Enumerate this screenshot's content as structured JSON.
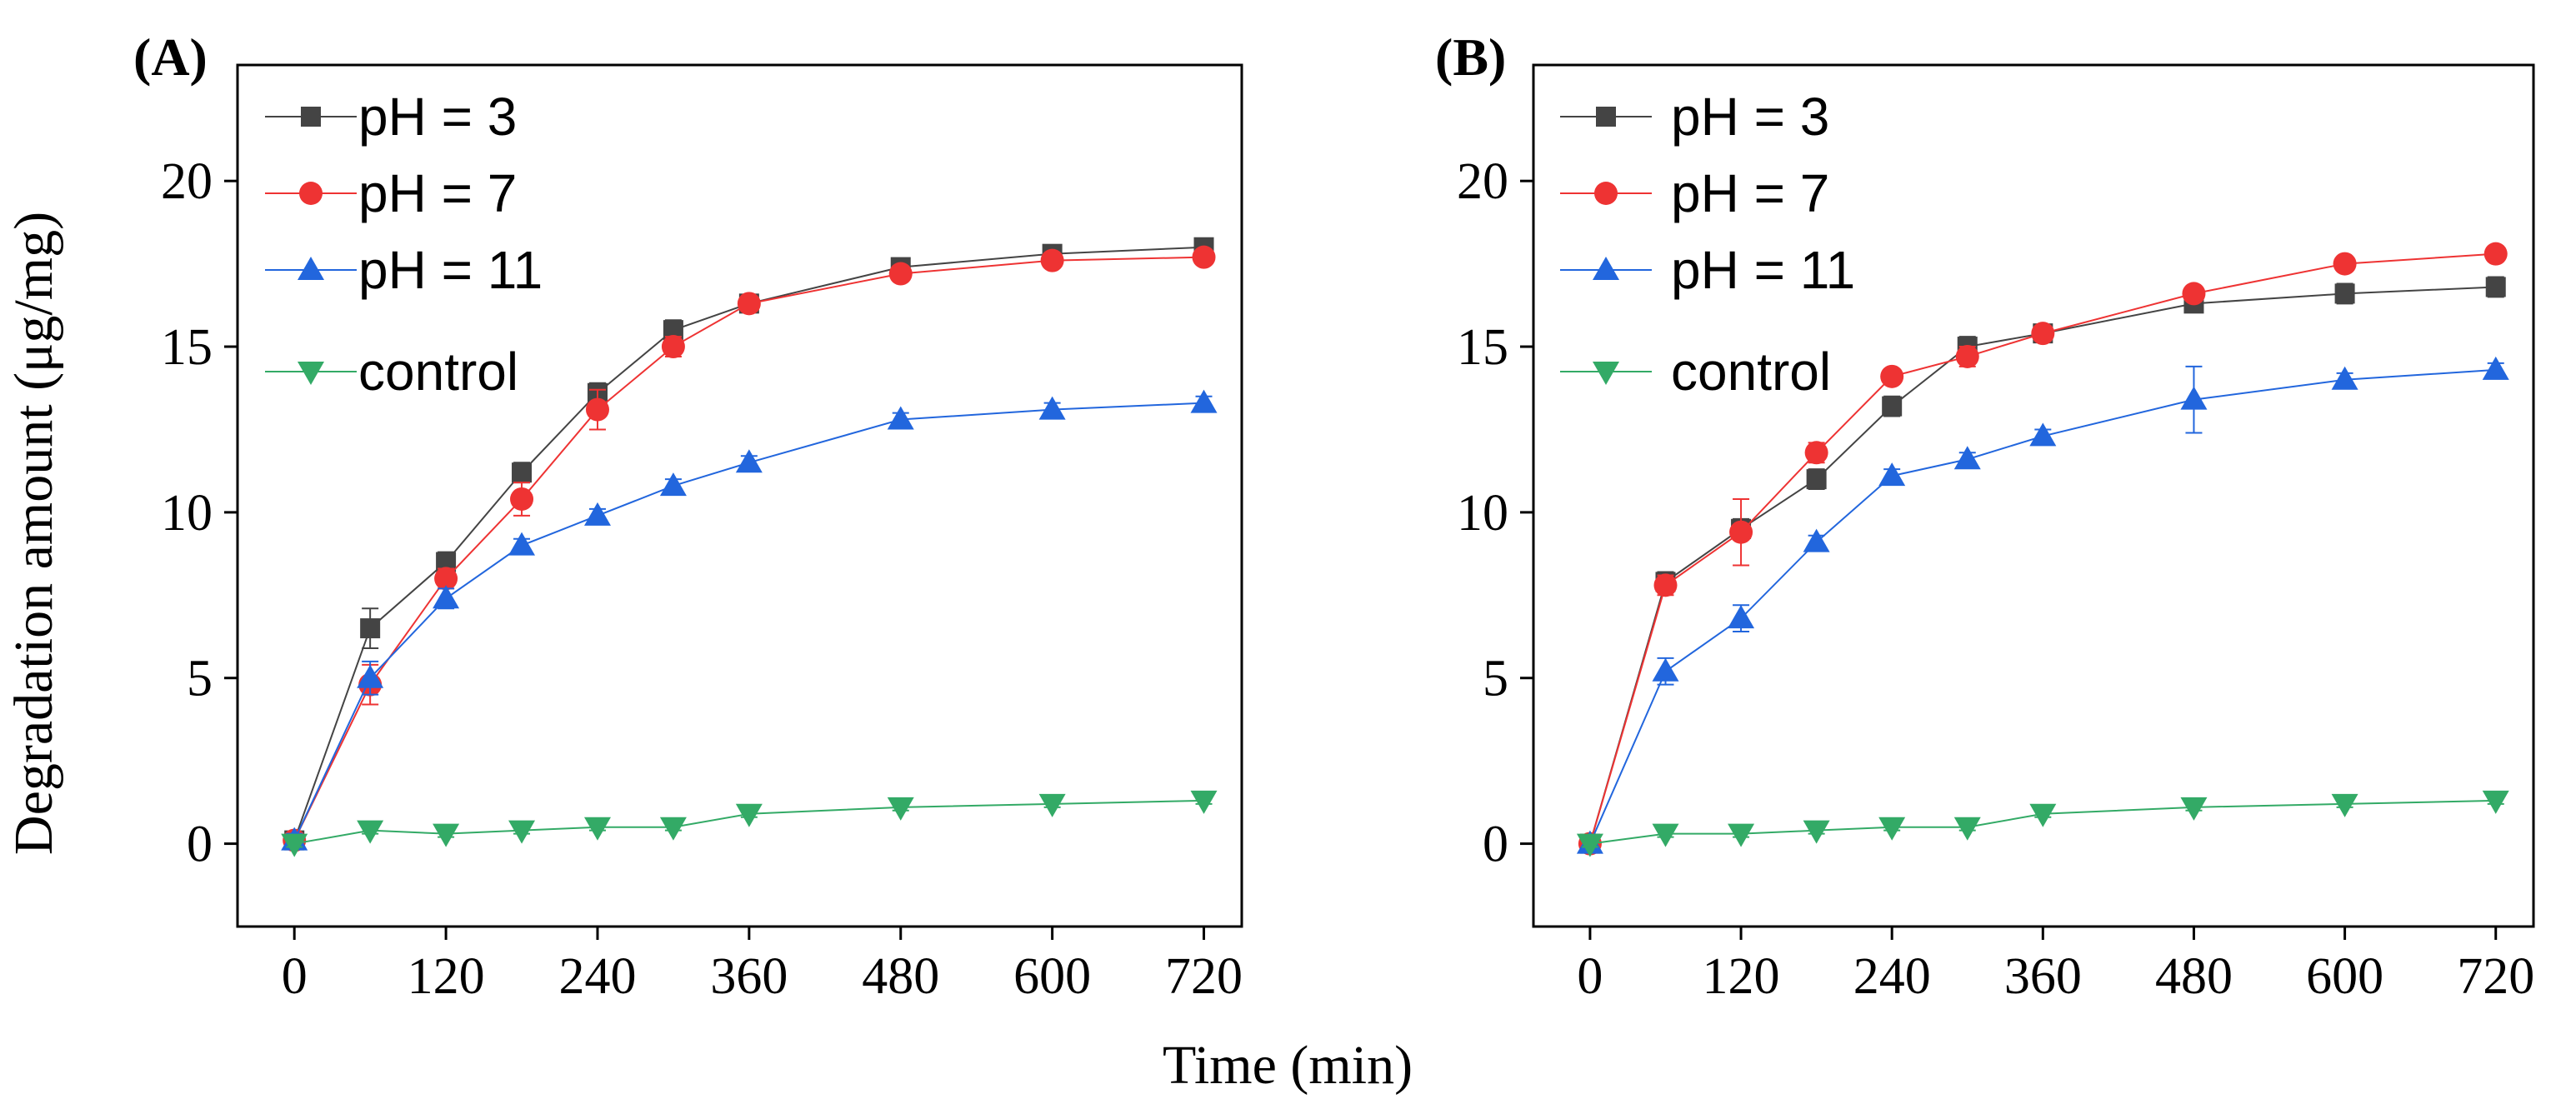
{
  "figure": {
    "ylabel": "Degradation amount (μg/mg)",
    "xlabel": "Time (min)"
  },
  "chart_data": [
    {
      "type": "line",
      "panel_label": "(A)",
      "xlabel": "Time (min)",
      "ylabel": "Degradation amount (μg/mg)",
      "x_ticks": [
        0,
        120,
        240,
        360,
        480,
        600,
        720
      ],
      "y_ticks": [
        0,
        5,
        10,
        15,
        20
      ],
      "xlim": [
        -45,
        750
      ],
      "ylim": [
        -2.5,
        23.5
      ],
      "legend_position": "top-left",
      "series": [
        {
          "name": "pH = 3",
          "color": "#444444",
          "marker": "square",
          "x": [
            0,
            60,
            120,
            180,
            240,
            300,
            360,
            480,
            600,
            720
          ],
          "y": [
            0.1,
            6.5,
            8.5,
            11.2,
            13.6,
            15.5,
            16.3,
            17.4,
            17.8,
            18.0
          ],
          "err": [
            0.2,
            0.6,
            0.3,
            0.3,
            0.3,
            0.3,
            0.2,
            0.2,
            0.2,
            0.2
          ]
        },
        {
          "name": "pH = 7",
          "color": "#ee3333",
          "marker": "circle",
          "x": [
            0,
            60,
            120,
            180,
            240,
            300,
            360,
            480,
            600,
            720
          ],
          "y": [
            0.1,
            4.8,
            8.0,
            10.4,
            13.1,
            15.0,
            16.3,
            17.2,
            17.6,
            17.7
          ],
          "err": [
            0.2,
            0.6,
            0.3,
            0.5,
            0.6,
            0.3,
            0.2,
            0.2,
            0.2,
            0.2
          ]
        },
        {
          "name": "pH = 11",
          "color": "#2266dd",
          "marker": "triangle-up",
          "x": [
            0,
            60,
            120,
            180,
            240,
            300,
            360,
            480,
            600,
            720
          ],
          "y": [
            0.1,
            5.0,
            7.4,
            9.0,
            9.9,
            10.8,
            11.5,
            12.8,
            13.1,
            13.3
          ],
          "err": [
            0.2,
            0.5,
            0.3,
            0.2,
            0.2,
            0.2,
            0.2,
            0.2,
            0.2,
            0.2
          ]
        },
        {
          "name": "control",
          "color": "#33aa66",
          "marker": "triangle-down",
          "x": [
            0,
            60,
            120,
            180,
            240,
            300,
            360,
            480,
            600,
            720
          ],
          "y": [
            0.0,
            0.4,
            0.3,
            0.4,
            0.5,
            0.5,
            0.9,
            1.1,
            1.2,
            1.3
          ],
          "err": [
            0.1,
            0.1,
            0.1,
            0.1,
            0.1,
            0.1,
            0.1,
            0.1,
            0.1,
            0.1
          ]
        }
      ]
    },
    {
      "type": "line",
      "panel_label": "(B)",
      "xlabel": "Time (min)",
      "ylabel": "",
      "x_ticks": [
        0,
        120,
        240,
        360,
        480,
        600,
        720
      ],
      "y_ticks": [
        0,
        5,
        10,
        15,
        20
      ],
      "xlim": [
        -45,
        750
      ],
      "ylim": [
        -2.5,
        23.5
      ],
      "legend_position": "top-left",
      "series": [
        {
          "name": "pH = 3",
          "color": "#444444",
          "marker": "square",
          "x": [
            0,
            60,
            120,
            180,
            240,
            300,
            360,
            480,
            600,
            720
          ],
          "y": [
            0.0,
            7.9,
            9.5,
            11.0,
            13.2,
            15.0,
            15.4,
            16.3,
            16.6,
            16.8
          ],
          "err": [
            0.2,
            0.3,
            0.3,
            0.3,
            0.3,
            0.3,
            0.2,
            0.2,
            0.3,
            0.3
          ]
        },
        {
          "name": "pH = 7",
          "color": "#ee3333",
          "marker": "circle",
          "x": [
            0,
            60,
            120,
            180,
            240,
            300,
            360,
            480,
            600,
            720
          ],
          "y": [
            0.0,
            7.8,
            9.4,
            11.8,
            14.1,
            14.7,
            15.4,
            16.6,
            17.5,
            17.8
          ],
          "err": [
            0.2,
            0.3,
            1.0,
            0.3,
            0.2,
            0.3,
            0.2,
            0.2,
            0.2,
            0.2
          ]
        },
        {
          "name": "pH = 11",
          "color": "#2266dd",
          "marker": "triangle-up",
          "x": [
            0,
            60,
            120,
            180,
            240,
            300,
            360,
            480,
            600,
            720
          ],
          "y": [
            0.0,
            5.2,
            6.8,
            9.1,
            11.1,
            11.6,
            12.3,
            13.4,
            14.0,
            14.3
          ],
          "err": [
            0.2,
            0.4,
            0.4,
            0.2,
            0.2,
            0.2,
            0.2,
            1.0,
            0.2,
            0.2
          ]
        },
        {
          "name": "control",
          "color": "#33aa66",
          "marker": "triangle-down",
          "x": [
            0,
            60,
            120,
            180,
            240,
            300,
            360,
            480,
            600,
            720
          ],
          "y": [
            0.0,
            0.3,
            0.3,
            0.4,
            0.5,
            0.5,
            0.9,
            1.1,
            1.2,
            1.3
          ],
          "err": [
            0.1,
            0.1,
            0.1,
            0.1,
            0.1,
            0.1,
            0.1,
            0.1,
            0.1,
            0.1
          ]
        }
      ]
    }
  ]
}
